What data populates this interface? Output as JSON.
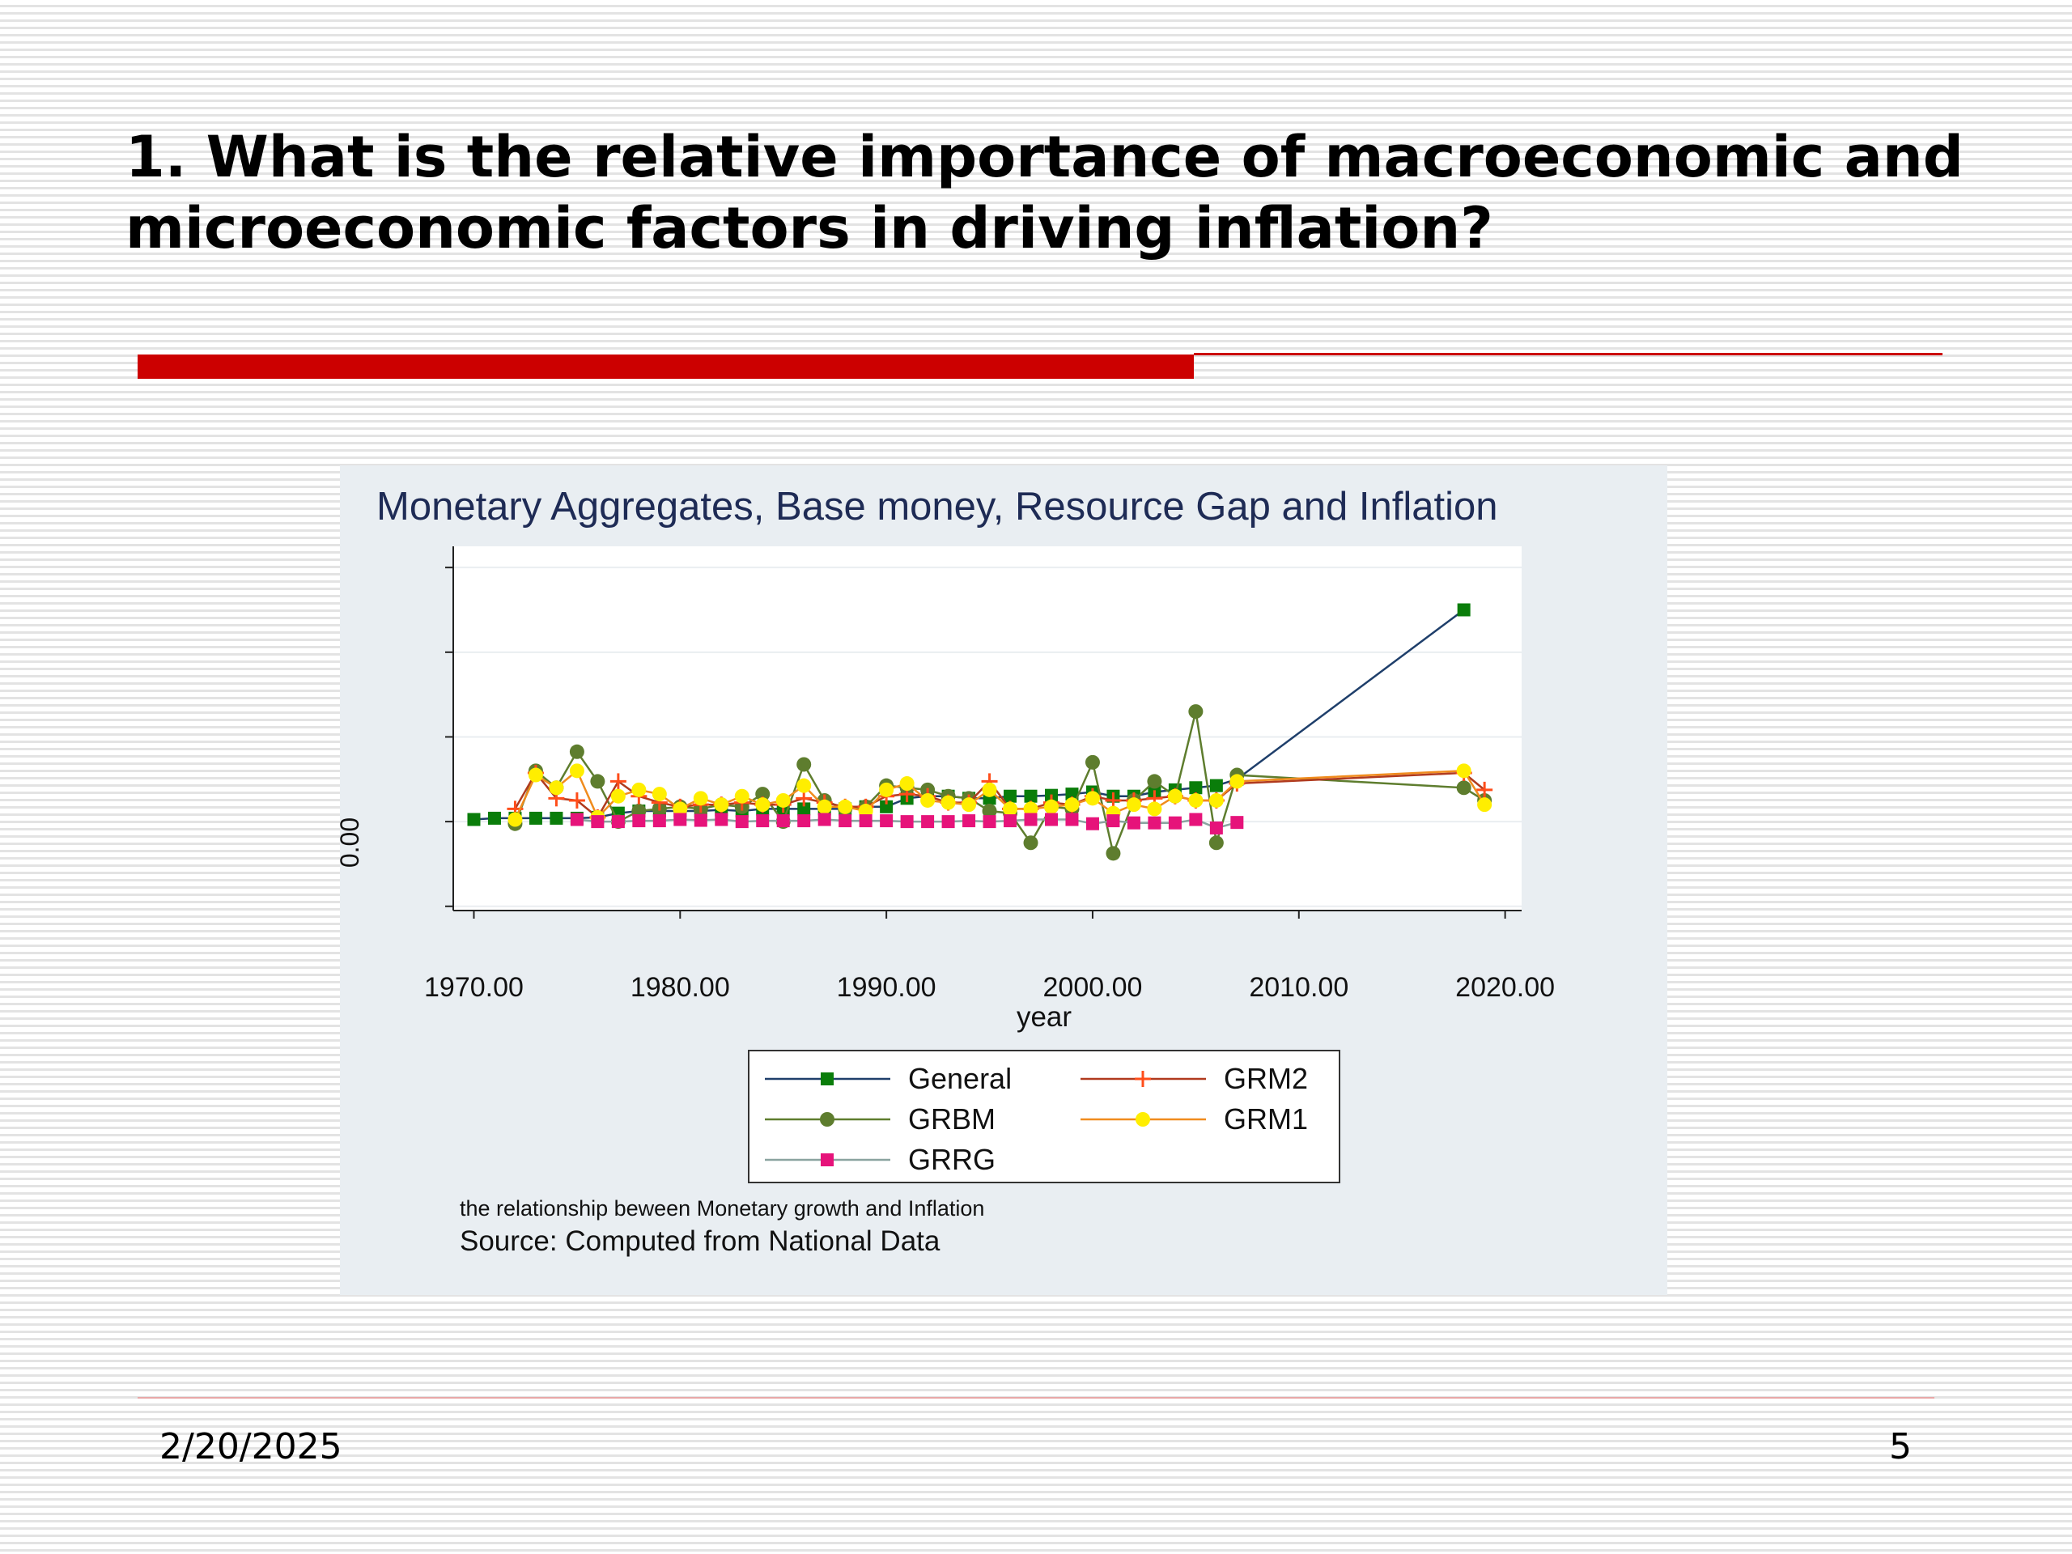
{
  "slide": {
    "title": "1. What is the relative importance of macroeconomic and microeconomic factors in driving inflation?",
    "date": "2/20/2025",
    "page_number": "5",
    "accent_color": "#cc0000"
  },
  "chart_data": {
    "type": "line",
    "title": "Monetary Aggregates, Base money, Resource Gap  and Inflation",
    "xlabel": "year",
    "ylabel": "",
    "y_tick_labels": [
      "0.00"
    ],
    "xlim": [
      1969,
      2020.8
    ],
    "ylim": [
      -2.1,
      6.5
    ],
    "x_ticks": [
      1970,
      1980,
      1990,
      2000,
      2010,
      2020
    ],
    "x_tick_labels": [
      "1970.00",
      "1980.00",
      "1990.00",
      "2000.00",
      "2010.00",
      "2020.00"
    ],
    "y_ticks": [
      -2,
      0,
      2,
      4,
      6
    ],
    "grid": true,
    "legend_position": "bottom",
    "note": "the relationship beween Monetary growth and Inflation",
    "source": "Source: Computed from National Data",
    "series": [
      {
        "name": "General",
        "color": "#1f3f6b",
        "marker": "square",
        "marker_color": "#0a7d0a",
        "points": [
          [
            1970,
            0.05
          ],
          [
            1971,
            0.08
          ],
          [
            1972,
            0.08
          ],
          [
            1973,
            0.08
          ],
          [
            1974,
            0.08
          ],
          [
            1975,
            0.08
          ],
          [
            1976,
            0.1
          ],
          [
            1977,
            0.2
          ],
          [
            1978,
            0.25
          ],
          [
            1979,
            0.25
          ],
          [
            1980,
            0.25
          ],
          [
            1981,
            0.25
          ],
          [
            1982,
            0.28
          ],
          [
            1983,
            0.25
          ],
          [
            1984,
            0.3
          ],
          [
            1985,
            0.3
          ],
          [
            1986,
            0.3
          ],
          [
            1987,
            0.3
          ],
          [
            1988,
            0.3
          ],
          [
            1989,
            0.35
          ],
          [
            1990,
            0.35
          ],
          [
            1991,
            0.55
          ],
          [
            1992,
            0.6
          ],
          [
            1993,
            0.6
          ],
          [
            1994,
            0.55
          ],
          [
            1995,
            0.55
          ],
          [
            1996,
            0.6
          ],
          [
            1997,
            0.6
          ],
          [
            1998,
            0.62
          ],
          [
            1999,
            0.65
          ],
          [
            2000,
            0.7
          ],
          [
            2001,
            0.6
          ],
          [
            2002,
            0.6
          ],
          [
            2003,
            0.7
          ],
          [
            2004,
            0.75
          ],
          [
            2005,
            0.8
          ],
          [
            2006,
            0.85
          ],
          [
            2007,
            1.0
          ],
          [
            2018,
            5.0
          ]
        ]
      },
      {
        "name": "GRBM",
        "color": "#5e7d2e",
        "marker": "circle",
        "marker_color": "#5e7d2e",
        "points": [
          [
            1972,
            -0.05
          ],
          [
            1973,
            1.2
          ],
          [
            1974,
            0.8
          ],
          [
            1975,
            1.65
          ],
          [
            1976,
            0.95
          ],
          [
            1977,
            0.0
          ],
          [
            1978,
            0.25
          ],
          [
            1979,
            0.3
          ],
          [
            1980,
            0.35
          ],
          [
            1981,
            0.3
          ],
          [
            1982,
            0.4
          ],
          [
            1983,
            0.35
          ],
          [
            1984,
            0.65
          ],
          [
            1985,
            0.0
          ],
          [
            1986,
            1.35
          ],
          [
            1987,
            0.5
          ],
          [
            1988,
            0.3
          ],
          [
            1989,
            0.35
          ],
          [
            1990,
            0.85
          ],
          [
            1991,
            0.8
          ],
          [
            1992,
            0.75
          ],
          [
            1993,
            0.6
          ],
          [
            1994,
            0.55
          ],
          [
            1995,
            0.25
          ],
          [
            1996,
            0.2
          ],
          [
            1997,
            -0.5
          ],
          [
            1998,
            0.35
          ],
          [
            1999,
            0.3
          ],
          [
            2000,
            1.4
          ],
          [
            2001,
            -0.75
          ],
          [
            2002,
            0.5
          ],
          [
            2003,
            0.95
          ],
          [
            2004,
            0.6
          ],
          [
            2005,
            2.6
          ],
          [
            2006,
            -0.5
          ],
          [
            2007,
            1.1
          ],
          [
            2018,
            0.8
          ],
          [
            2019,
            0.5
          ]
        ]
      },
      {
        "name": "GRRG",
        "color": "#8aa4a0",
        "marker": "square",
        "marker_color": "#e6137a",
        "points": [
          [
            1975,
            0.05
          ],
          [
            1976,
            0.0
          ],
          [
            1977,
            0.0
          ],
          [
            1978,
            0.02
          ],
          [
            1979,
            0.02
          ],
          [
            1980,
            0.05
          ],
          [
            1981,
            0.03
          ],
          [
            1982,
            0.05
          ],
          [
            1983,
            0.0
          ],
          [
            1984,
            0.02
          ],
          [
            1985,
            0.02
          ],
          [
            1986,
            0.02
          ],
          [
            1987,
            0.05
          ],
          [
            1988,
            0.02
          ],
          [
            1989,
            0.02
          ],
          [
            1990,
            0.02
          ],
          [
            1991,
            0.0
          ],
          [
            1992,
            0.0
          ],
          [
            1993,
            0.0
          ],
          [
            1994,
            0.02
          ],
          [
            1995,
            0.0
          ],
          [
            1996,
            0.02
          ],
          [
            1997,
            0.05
          ],
          [
            1998,
            0.05
          ],
          [
            1999,
            0.05
          ],
          [
            2000,
            -0.05
          ],
          [
            2001,
            0.02
          ],
          [
            2002,
            -0.03
          ],
          [
            2003,
            -0.03
          ],
          [
            2004,
            -0.03
          ],
          [
            2005,
            0.05
          ],
          [
            2006,
            -0.15
          ],
          [
            2007,
            -0.02
          ]
        ]
      },
      {
        "name": "GRM2",
        "color": "#b03a1e",
        "marker": "plus",
        "marker_color": "#ff4d1a",
        "points": [
          [
            1972,
            0.3
          ],
          [
            1973,
            1.15
          ],
          [
            1974,
            0.55
          ],
          [
            1975,
            0.5
          ],
          [
            1976,
            0.1
          ],
          [
            1977,
            0.95
          ],
          [
            1978,
            0.6
          ],
          [
            1979,
            0.45
          ],
          [
            1980,
            0.35
          ],
          [
            1981,
            0.4
          ],
          [
            1982,
            0.4
          ],
          [
            1983,
            0.45
          ],
          [
            1984,
            0.4
          ],
          [
            1985,
            0.4
          ],
          [
            1986,
            0.55
          ],
          [
            1987,
            0.45
          ],
          [
            1988,
            0.35
          ],
          [
            1989,
            0.35
          ],
          [
            1990,
            0.6
          ],
          [
            1991,
            0.65
          ],
          [
            1992,
            0.6
          ],
          [
            1993,
            0.45
          ],
          [
            1994,
            0.45
          ],
          [
            1995,
            0.95
          ],
          [
            1996,
            0.3
          ],
          [
            1997,
            0.3
          ],
          [
            1998,
            0.45
          ],
          [
            1999,
            0.4
          ],
          [
            2000,
            0.6
          ],
          [
            2001,
            0.5
          ],
          [
            2002,
            0.5
          ],
          [
            2003,
            0.55
          ],
          [
            2004,
            0.6
          ],
          [
            2005,
            0.5
          ],
          [
            2006,
            0.5
          ],
          [
            2007,
            0.9
          ],
          [
            2018,
            1.15
          ],
          [
            2019,
            0.75
          ]
        ]
      },
      {
        "name": "GRM1",
        "color": "#f08c1e",
        "marker": "circle",
        "marker_color": "#ffee00",
        "points": [
          [
            1972,
            0.05
          ],
          [
            1973,
            1.1
          ],
          [
            1974,
            0.8
          ],
          [
            1975,
            1.2
          ],
          [
            1976,
            0.1
          ],
          [
            1977,
            0.6
          ],
          [
            1978,
            0.75
          ],
          [
            1979,
            0.65
          ],
          [
            1980,
            0.3
          ],
          [
            1981,
            0.55
          ],
          [
            1982,
            0.4
          ],
          [
            1983,
            0.6
          ],
          [
            1984,
            0.4
          ],
          [
            1985,
            0.5
          ],
          [
            1986,
            0.85
          ],
          [
            1987,
            0.35
          ],
          [
            1988,
            0.35
          ],
          [
            1989,
            0.25
          ],
          [
            1990,
            0.75
          ],
          [
            1991,
            0.9
          ],
          [
            1992,
            0.5
          ],
          [
            1993,
            0.45
          ],
          [
            1994,
            0.4
          ],
          [
            1995,
            0.75
          ],
          [
            1996,
            0.3
          ],
          [
            1997,
            0.3
          ],
          [
            1998,
            0.35
          ],
          [
            1999,
            0.4
          ],
          [
            2000,
            0.55
          ],
          [
            2001,
            0.2
          ],
          [
            2002,
            0.4
          ],
          [
            2003,
            0.3
          ],
          [
            2004,
            0.6
          ],
          [
            2005,
            0.5
          ],
          [
            2006,
            0.5
          ],
          [
            2007,
            0.95
          ],
          [
            2018,
            1.2
          ],
          [
            2019,
            0.4
          ]
        ]
      }
    ]
  }
}
